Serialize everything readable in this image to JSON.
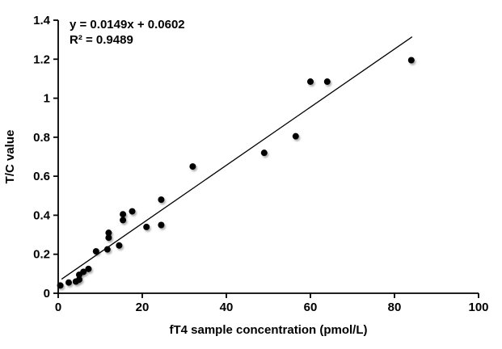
{
  "chart_data": {
    "type": "scatter",
    "title": "",
    "xlabel": "fT4 sample concentration (pmol/L)",
    "ylabel": "T/C value",
    "xlim": [
      0,
      100
    ],
    "ylim": [
      0,
      1.4
    ],
    "x_ticks": [
      "0",
      "20",
      "40",
      "60",
      "80",
      "100"
    ],
    "y_ticks": [
      "0",
      "0.2",
      "0.4",
      "0.6",
      "0.8",
      "1",
      "1.2",
      "1.4"
    ],
    "grid": false,
    "legend": "none",
    "equation_label": "y = 0.0149x + 0.0602",
    "r2_label": "R² = 0.9489",
    "marker_color": "#000000",
    "line_color": "#000000",
    "points": [
      [
        0.5,
        0.04
      ],
      [
        2.5,
        0.055
      ],
      [
        4.2,
        0.06
      ],
      [
        5.0,
        0.07
      ],
      [
        5.0,
        0.095
      ],
      [
        6.0,
        0.11
      ],
      [
        7.2,
        0.125
      ],
      [
        9.0,
        0.215
      ],
      [
        11.7,
        0.225
      ],
      [
        12.0,
        0.285
      ],
      [
        12.0,
        0.31
      ],
      [
        14.5,
        0.245
      ],
      [
        15.4,
        0.375
      ],
      [
        15.4,
        0.405
      ],
      [
        17.6,
        0.42
      ],
      [
        21.0,
        0.34
      ],
      [
        24.5,
        0.35
      ],
      [
        24.5,
        0.48
      ],
      [
        32.0,
        0.65
      ],
      [
        49.0,
        0.72
      ],
      [
        56.5,
        0.805
      ],
      [
        60.0,
        1.085
      ],
      [
        64.0,
        1.085
      ],
      [
        84.0,
        1.195
      ]
    ],
    "trendline": {
      "slope": 0.0149,
      "intercept": 0.0602,
      "x_start": 0.8,
      "x_end": 84.2
    }
  }
}
